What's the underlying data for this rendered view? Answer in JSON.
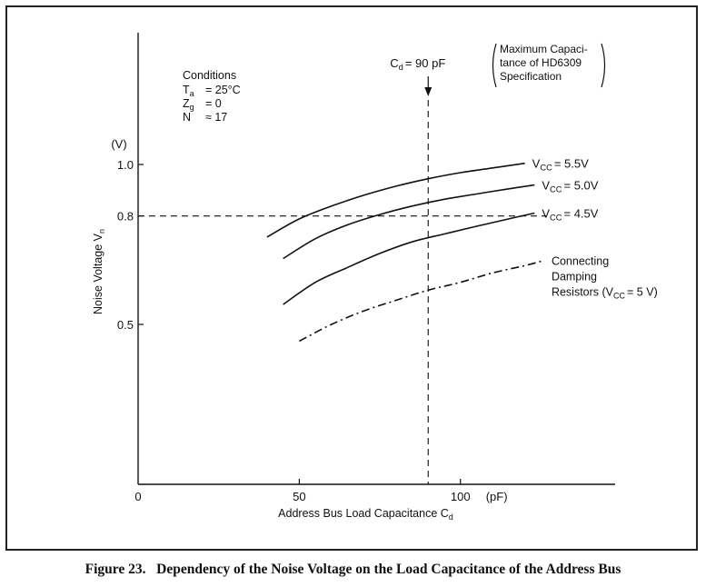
{
  "figure": {
    "caption": "Figure 23.   Dependency of the Noise Voltage on the Load Capacitance of the Address Bus"
  },
  "chart_data": {
    "type": "line",
    "xlabel": "Address Bus Load Capacitance",
    "xlabel_sub": "d",
    "xlabel_prefix": "C",
    "x_unit": "(pF)",
    "ylabel": "Noise Voltage V",
    "ylabel_sub": "n",
    "y_unit": "(V)",
    "y_scale": "log",
    "xlim": [
      0,
      148
    ],
    "ylim": [
      0.27,
      1.5
    ],
    "xticks": [
      0,
      50,
      100
    ],
    "xtick_labels": [
      "0",
      "50",
      "100"
    ],
    "yticks": [
      0.5,
      0.8,
      1.0
    ],
    "ytick_labels": [
      "0.5",
      "0.8",
      "1.0"
    ],
    "grid": false,
    "series": [
      {
        "name": "VCC=5.5V",
        "label_main": "V",
        "label_sub": "CC",
        "label_tail": "= 5.5V",
        "style": "solid",
        "points": [
          [
            40,
            0.73
          ],
          [
            50,
            0.79
          ],
          [
            60,
            0.835
          ],
          [
            70,
            0.875
          ],
          [
            80,
            0.91
          ],
          [
            90,
            0.94
          ],
          [
            100,
            0.965
          ],
          [
            110,
            0.985
          ],
          [
            120,
            1.005
          ]
        ]
      },
      {
        "name": "VCC=5.0V",
        "label_main": "V",
        "label_sub": "CC",
        "label_tail": "= 5.0V",
        "style": "solid",
        "points": [
          [
            45,
            0.665
          ],
          [
            55,
            0.725
          ],
          [
            65,
            0.77
          ],
          [
            75,
            0.805
          ],
          [
            85,
            0.835
          ],
          [
            95,
            0.86
          ],
          [
            105,
            0.88
          ],
          [
            115,
            0.9
          ],
          [
            123,
            0.915
          ]
        ]
      },
      {
        "name": "VCC=4.5V",
        "label_main": "V",
        "label_sub": "CC",
        "label_tail": "= 4.5V",
        "style": "solid",
        "points": [
          [
            45,
            0.545
          ],
          [
            55,
            0.6
          ],
          [
            65,
            0.64
          ],
          [
            75,
            0.68
          ],
          [
            85,
            0.715
          ],
          [
            95,
            0.74
          ],
          [
            105,
            0.765
          ],
          [
            115,
            0.79
          ],
          [
            123,
            0.81
          ]
        ]
      },
      {
        "name": "Connecting Damping Resistors (VCC=5 V)",
        "label_lines": [
          "Connecting",
          "Damping"
        ],
        "label_last_main": "Resistors (V",
        "label_last_sub": "CC",
        "label_last_tail": "= 5 V)",
        "style": "dashdot",
        "points": [
          [
            50,
            0.465
          ],
          [
            60,
            0.5
          ],
          [
            70,
            0.53
          ],
          [
            80,
            0.555
          ],
          [
            90,
            0.58
          ],
          [
            100,
            0.6
          ],
          [
            110,
            0.625
          ],
          [
            120,
            0.645
          ],
          [
            126,
            0.66
          ]
        ]
      }
    ],
    "reference_lines": {
      "vertical": {
        "x": 90,
        "label_main": "C",
        "label_sub": "d",
        "label_tail": "= 90 pF",
        "note_lines": [
          "Maximum Capaci-",
          "tance of HD6309",
          "Specification"
        ]
      },
      "horizontal": {
        "y": 0.8
      }
    },
    "conditions": {
      "title": "Conditions",
      "rows": [
        {
          "main": "T",
          "sub": "a",
          "value": "= 25°C"
        },
        {
          "main": "Z",
          "sub": "g",
          "value": "= 0"
        },
        {
          "main": "N",
          "sub": "",
          "value": "≈ 17"
        }
      ]
    }
  }
}
